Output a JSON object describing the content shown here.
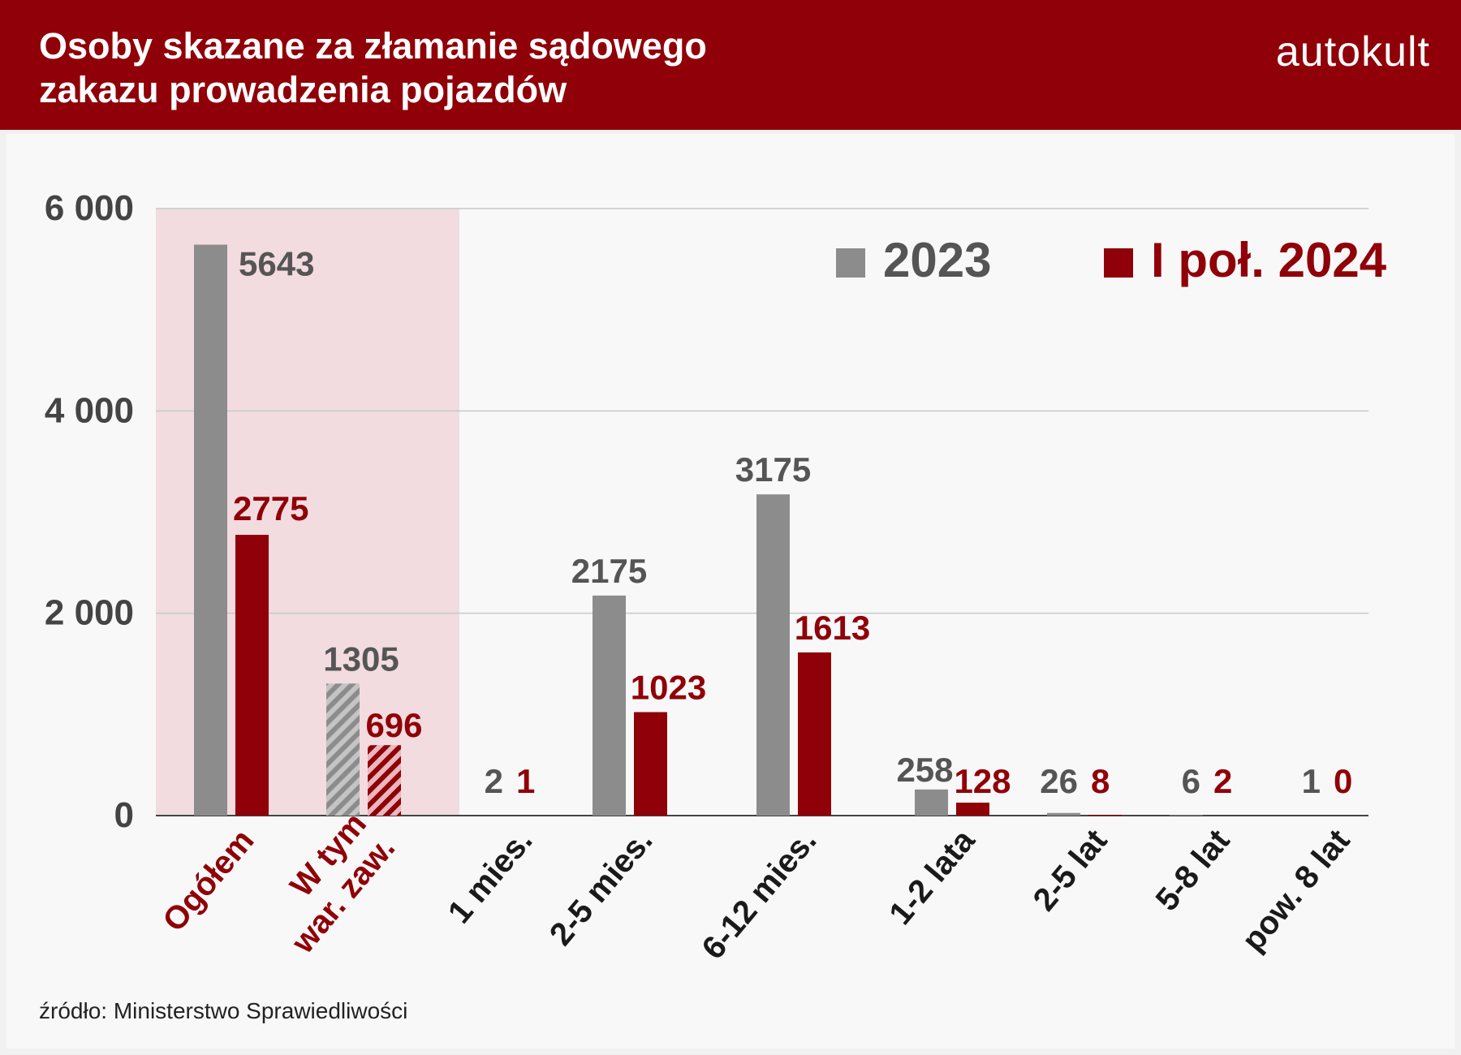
{
  "header": {
    "title": "Osoby skazane za złamanie sądowego\nzakazu prowadzenia pojazdów",
    "brand": "autokult"
  },
  "source": "źródło: Ministerstwo Sprawiedliwości",
  "colors": {
    "header_bg": "#900008",
    "series_2023": "#8c8c8c",
    "series_2024": "#900008",
    "highlight_band": "#f2dcdf",
    "label_2023": "#555555",
    "label_2024": "#900008",
    "category_highlight": "#900008",
    "category_default": "#1a1a1a"
  },
  "chart_data": {
    "type": "bar",
    "categories": [
      "Ogółem",
      "W tym\nwar. zaw.",
      "1 mies.",
      "2-5 mies.",
      "6-12 mies.",
      "1-2 lata",
      "2-5 lat",
      "5-8 lat",
      "pow. 8 lat"
    ],
    "highlighted_categories": [
      0,
      1
    ],
    "hatched_categories": [
      1
    ],
    "series": [
      {
        "name": "2023",
        "values": [
          5643,
          1305,
          2,
          2175,
          3175,
          258,
          26,
          6,
          1
        ]
      },
      {
        "name": "I poł. 2024",
        "values": [
          2775,
          696,
          1,
          1023,
          1613,
          128,
          8,
          2,
          0
        ]
      }
    ],
    "yticks": [
      "6 000",
      "4 000",
      "2 000",
      "0"
    ],
    "ylim": [
      0,
      6000
    ],
    "grid": true,
    "legend_position": "top-right"
  }
}
